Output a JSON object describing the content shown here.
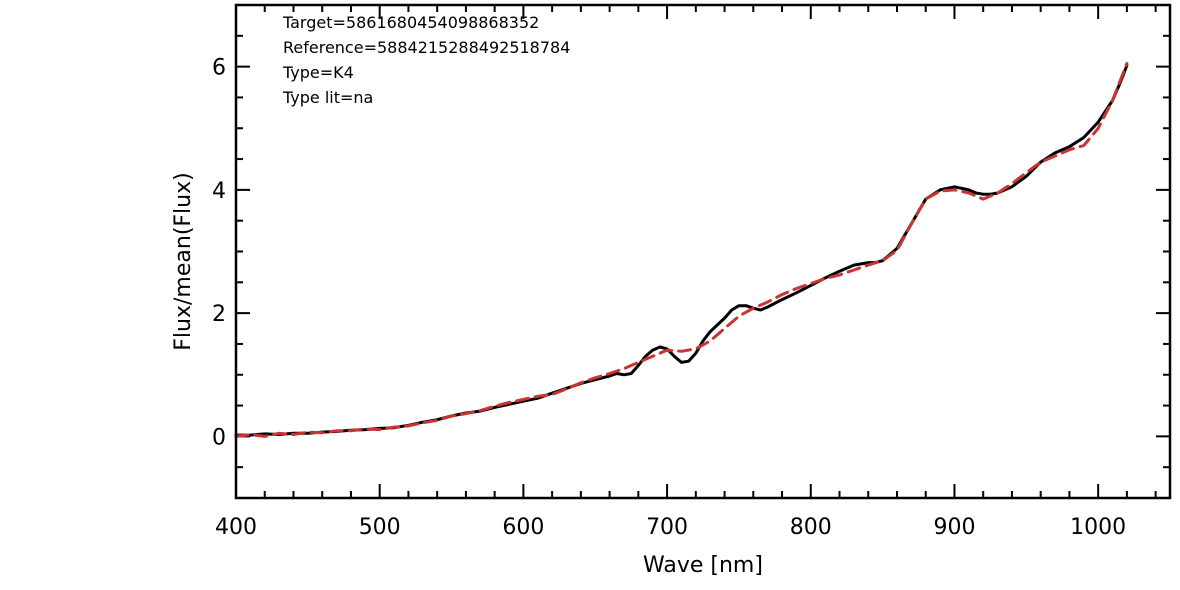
{
  "chart_data": {
    "type": "line",
    "title": "",
    "xlabel": "Wave [nm]",
    "ylabel": "Flux/mean(Flux)",
    "xlim": [
      400,
      1050
    ],
    "ylim": [
      -1,
      7
    ],
    "xticks": [
      400,
      500,
      600,
      700,
      800,
      900,
      1000
    ],
    "xtick_labels": [
      "400",
      "500",
      "600",
      "700",
      "800",
      "900",
      "1000"
    ],
    "yticks": [
      0,
      2,
      4,
      6
    ],
    "ytick_labels": [
      "0",
      "2",
      "4",
      "6"
    ],
    "x_minor_step": 20,
    "y_minor_step": 0.5,
    "grid": false,
    "annotations": [
      "Target=5861680454098868352",
      "Reference=5884215288492518784",
      "Type=K4",
      "Type lit=na"
    ],
    "series": [
      {
        "color": "#000000",
        "dash": "solid",
        "x": [
          400,
          410,
          420,
          430,
          440,
          450,
          460,
          470,
          480,
          490,
          500,
          510,
          520,
          530,
          540,
          550,
          560,
          570,
          580,
          590,
          600,
          610,
          620,
          630,
          640,
          650,
          660,
          665,
          670,
          675,
          680,
          685,
          690,
          695,
          700,
          705,
          710,
          715,
          720,
          725,
          730,
          740,
          745,
          750,
          755,
          760,
          765,
          770,
          780,
          790,
          800,
          810,
          820,
          830,
          840,
          845,
          850,
          860,
          870,
          880,
          890,
          900,
          910,
          915,
          920,
          925,
          930,
          940,
          950,
          960,
          970,
          980,
          990,
          1000,
          1010,
          1015,
          1020
        ],
        "y": [
          0.02,
          0.02,
          0.04,
          0.03,
          0.05,
          0.05,
          0.07,
          0.08,
          0.1,
          0.11,
          0.13,
          0.14,
          0.18,
          0.23,
          0.27,
          0.33,
          0.38,
          0.41,
          0.47,
          0.52,
          0.57,
          0.62,
          0.7,
          0.78,
          0.86,
          0.92,
          0.98,
          1.02,
          1.0,
          1.02,
          1.15,
          1.3,
          1.4,
          1.45,
          1.42,
          1.3,
          1.2,
          1.22,
          1.35,
          1.55,
          1.7,
          1.92,
          2.05,
          2.12,
          2.12,
          2.08,
          2.05,
          2.1,
          2.22,
          2.33,
          2.45,
          2.57,
          2.68,
          2.78,
          2.82,
          2.82,
          2.85,
          3.05,
          3.45,
          3.85,
          4.0,
          4.05,
          4.0,
          3.95,
          3.93,
          3.93,
          3.95,
          4.05,
          4.22,
          4.45,
          4.6,
          4.7,
          4.85,
          5.1,
          5.45,
          5.72,
          6.02
        ]
      },
      {
        "color": "#cc3333",
        "dash": "dashed",
        "x": [
          400,
          410,
          420,
          430,
          440,
          450,
          460,
          470,
          480,
          490,
          500,
          510,
          520,
          530,
          540,
          550,
          560,
          570,
          580,
          590,
          600,
          610,
          620,
          630,
          640,
          650,
          660,
          670,
          680,
          690,
          700,
          710,
          720,
          730,
          740,
          750,
          760,
          770,
          780,
          790,
          800,
          810,
          820,
          830,
          840,
          850,
          860,
          870,
          880,
          890,
          900,
          910,
          920,
          930,
          940,
          950,
          960,
          970,
          980,
          990,
          1000,
          1010,
          1020
        ],
        "y": [
          0.0,
          0.03,
          0.0,
          0.05,
          0.03,
          0.07,
          0.06,
          0.09,
          0.09,
          0.12,
          0.11,
          0.15,
          0.17,
          0.22,
          0.26,
          0.33,
          0.37,
          0.42,
          0.49,
          0.55,
          0.6,
          0.65,
          0.68,
          0.77,
          0.87,
          0.95,
          1.02,
          1.1,
          1.2,
          1.3,
          1.4,
          1.38,
          1.42,
          1.55,
          1.75,
          1.95,
          2.08,
          2.18,
          2.3,
          2.4,
          2.48,
          2.56,
          2.62,
          2.7,
          2.78,
          2.85,
          3.02,
          3.45,
          3.85,
          3.98,
          4.0,
          3.95,
          3.85,
          3.95,
          4.1,
          4.28,
          4.45,
          4.55,
          4.65,
          4.72,
          5.0,
          5.45,
          6.05
        ]
      }
    ]
  }
}
